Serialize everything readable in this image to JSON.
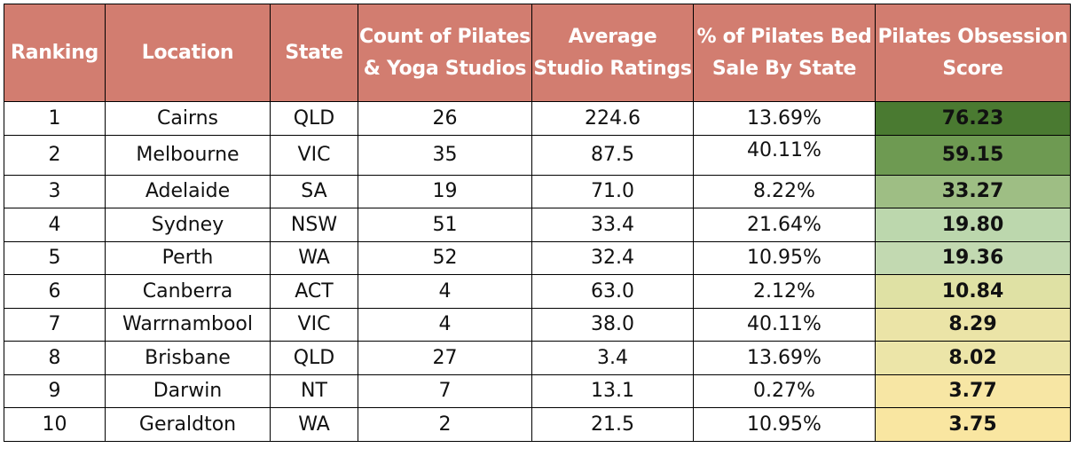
{
  "headers": [
    "Ranking",
    "Location",
    "State",
    "Count of Pilates & Yoga Studios",
    "Average Studio Ratings",
    "% of Pilates Bed Sale By State",
    "Pilates Obsession Score"
  ],
  "colors": {
    "header_bg": "#d27d70",
    "header_text": "#ffffff",
    "score_scale": [
      "#4a7a31",
      "#6e9a52",
      "#9ebe84",
      "#bcd7ad",
      "#c2d9b1",
      "#dfe1a4",
      "#ebe4a7",
      "#ece5a8",
      "#f7e6a4",
      "#f9e6a1"
    ]
  },
  "rows": [
    {
      "rank": "1",
      "location": "Cairns",
      "state": "QLD",
      "count": "26",
      "rating": "224.6",
      "pct": "13.69%",
      "score": "76.23"
    },
    {
      "rank": "2",
      "location": "Melbourne",
      "state": "VIC",
      "count": "35",
      "rating": "87.5",
      "pct": "40.11%",
      "score": "59.15"
    },
    {
      "rank": "3",
      "location": "Adelaide",
      "state": "SA",
      "count": "19",
      "rating": "71.0",
      "pct": "8.22%",
      "score": "33.27"
    },
    {
      "rank": "4",
      "location": "Sydney",
      "state": "NSW",
      "count": "51",
      "rating": "33.4",
      "pct": "21.64%",
      "score": "19.80"
    },
    {
      "rank": "5",
      "location": "Perth",
      "state": "WA",
      "count": "52",
      "rating": "32.4",
      "pct": "10.95%",
      "score": "19.36"
    },
    {
      "rank": "6",
      "location": "Canberra",
      "state": "ACT",
      "count": "4",
      "rating": "63.0",
      "pct": "2.12%",
      "score": "10.84"
    },
    {
      "rank": "7",
      "location": "Warrnambool",
      "state": "VIC",
      "count": "4",
      "rating": "38.0",
      "pct": "40.11%",
      "score": "8.29"
    },
    {
      "rank": "8",
      "location": "Brisbane",
      "state": "QLD",
      "count": "27",
      "rating": "3.4",
      "pct": "13.69%",
      "score": "8.02"
    },
    {
      "rank": "9",
      "location": "Darwin",
      "state": "NT",
      "count": "7",
      "rating": "13.1",
      "pct": "0.27%",
      "score": "3.77"
    },
    {
      "rank": "10",
      "location": "Geraldton",
      "state": "WA",
      "count": "2",
      "rating": "21.5",
      "pct": "10.95%",
      "score": "3.75"
    }
  ]
}
